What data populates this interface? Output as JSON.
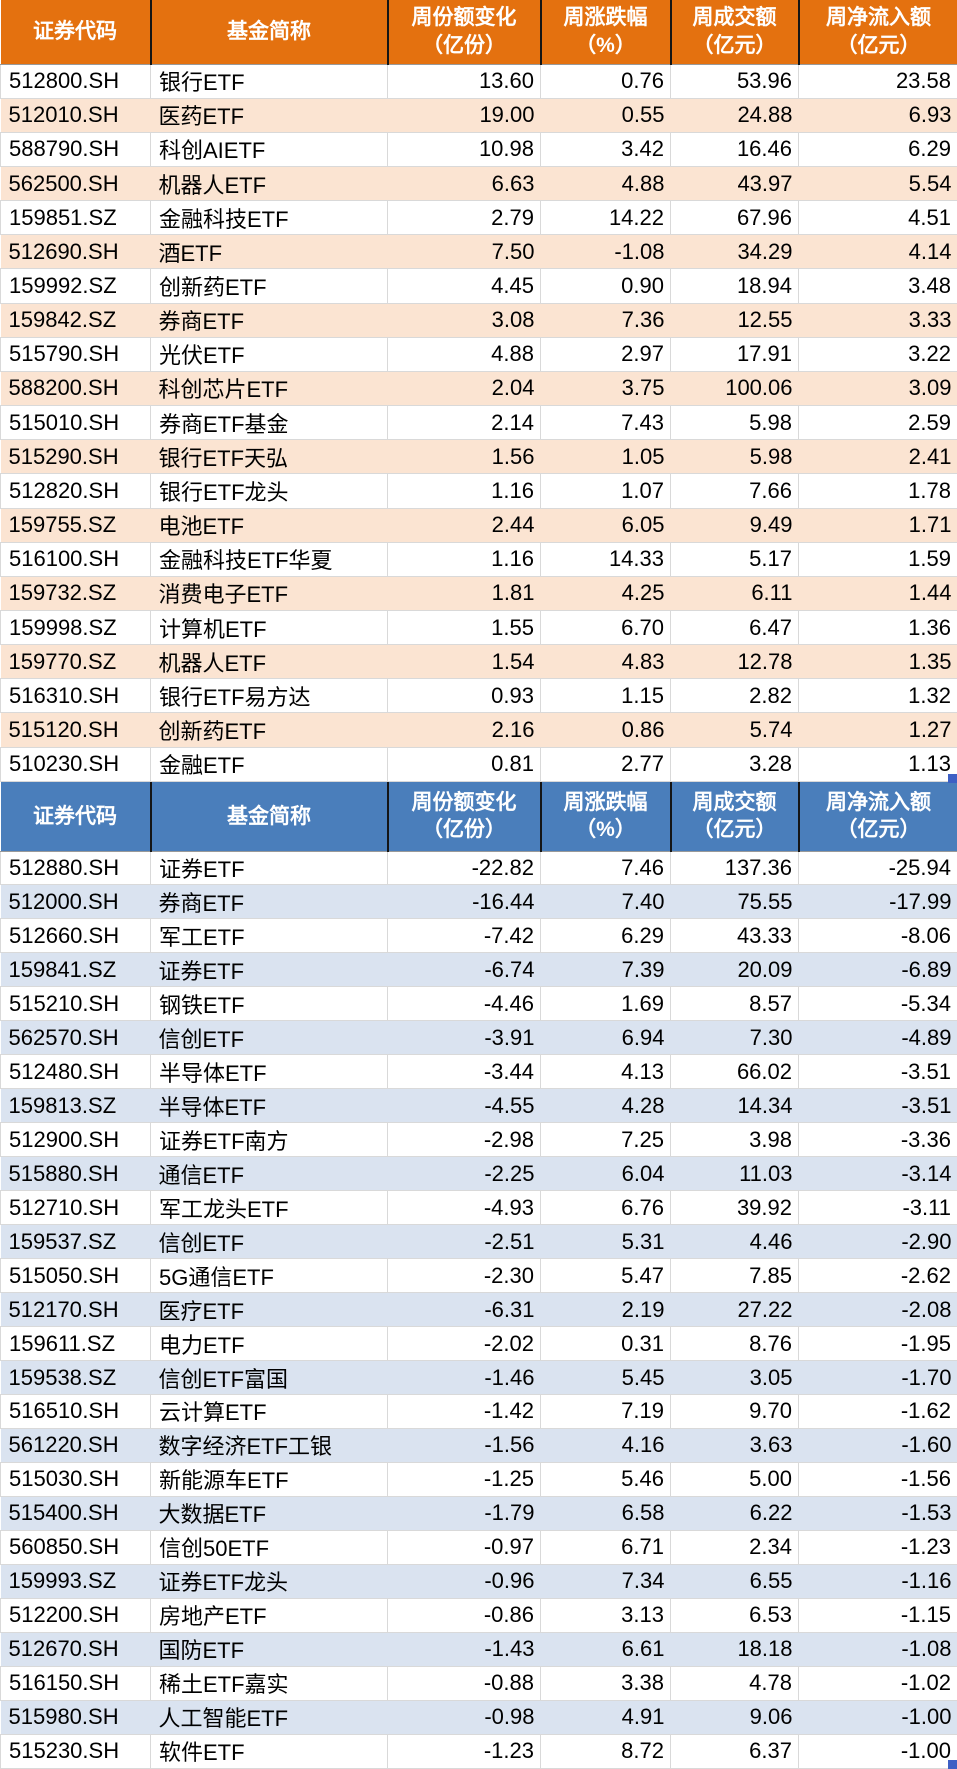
{
  "columns": {
    "code": "证券代码",
    "name": "基金简称",
    "share_change": "周份额变化\n（亿份）",
    "pct_change": "周涨跌幅\n（%）",
    "turnover": "周成交额\n（亿元）",
    "net_inflow": "周净流入额\n（亿元）"
  },
  "colors": {
    "orange_header": "#E4710F",
    "orange_band": "#FBE4D2",
    "blue_header": "#4A7EBB",
    "blue_band": "#DAE3F0",
    "gridline": "#D9D9D9",
    "selection_handle": "#3D5FC4"
  },
  "tables": [
    {
      "theme": "orange",
      "rows": [
        [
          "512800.SH",
          "银行ETF",
          "13.60",
          "0.76",
          "53.96",
          "23.58"
        ],
        [
          "512010.SH",
          "医药ETF",
          "19.00",
          "0.55",
          "24.88",
          "6.93"
        ],
        [
          "588790.SH",
          "科创AIETF",
          "10.98",
          "3.42",
          "16.46",
          "6.29"
        ],
        [
          "562500.SH",
          "机器人ETF",
          "6.63",
          "4.88",
          "43.97",
          "5.54"
        ],
        [
          "159851.SZ",
          "金融科技ETF",
          "2.79",
          "14.22",
          "67.96",
          "4.51"
        ],
        [
          "512690.SH",
          "酒ETF",
          "7.50",
          "-1.08",
          "34.29",
          "4.14"
        ],
        [
          "159992.SZ",
          "创新药ETF",
          "4.45",
          "0.90",
          "18.94",
          "3.48"
        ],
        [
          "159842.SZ",
          "券商ETF",
          "3.08",
          "7.36",
          "12.55",
          "3.33"
        ],
        [
          "515790.SH",
          "光伏ETF",
          "4.88",
          "2.97",
          "17.91",
          "3.22"
        ],
        [
          "588200.SH",
          "科创芯片ETF",
          "2.04",
          "3.75",
          "100.06",
          "3.09"
        ],
        [
          "515010.SH",
          "券商ETF基金",
          "2.14",
          "7.43",
          "5.98",
          "2.59"
        ],
        [
          "515290.SH",
          "银行ETF天弘",
          "1.56",
          "1.05",
          "5.98",
          "2.41"
        ],
        [
          "512820.SH",
          "银行ETF龙头",
          "1.16",
          "1.07",
          "7.66",
          "1.78"
        ],
        [
          "159755.SZ",
          "电池ETF",
          "2.44",
          "6.05",
          "9.49",
          "1.71"
        ],
        [
          "516100.SH",
          "金融科技ETF华夏",
          "1.16",
          "14.33",
          "5.17",
          "1.59"
        ],
        [
          "159732.SZ",
          "消费电子ETF",
          "1.81",
          "4.25",
          "6.11",
          "1.44"
        ],
        [
          "159998.SZ",
          "计算机ETF",
          "1.55",
          "6.70",
          "6.47",
          "1.36"
        ],
        [
          "159770.SZ",
          "机器人ETF",
          "1.54",
          "4.83",
          "12.78",
          "1.35"
        ],
        [
          "516310.SH",
          "银行ETF易方达",
          "0.93",
          "1.15",
          "2.82",
          "1.32"
        ],
        [
          "515120.SH",
          "创新药ETF",
          "2.16",
          "0.86",
          "5.74",
          "1.27"
        ],
        [
          "510230.SH",
          "金融ETF",
          "0.81",
          "2.77",
          "3.28",
          "1.13"
        ]
      ]
    },
    {
      "theme": "blue",
      "rows": [
        [
          "512880.SH",
          "证券ETF",
          "-22.82",
          "7.46",
          "137.36",
          "-25.94"
        ],
        [
          "512000.SH",
          "券商ETF",
          "-16.44",
          "7.40",
          "75.55",
          "-17.99"
        ],
        [
          "512660.SH",
          "军工ETF",
          "-7.42",
          "6.29",
          "43.33",
          "-8.06"
        ],
        [
          "159841.SZ",
          "证券ETF",
          "-6.74",
          "7.39",
          "20.09",
          "-6.89"
        ],
        [
          "515210.SH",
          "钢铁ETF",
          "-4.46",
          "1.69",
          "8.57",
          "-5.34"
        ],
        [
          "562570.SH",
          "信创ETF",
          "-3.91",
          "6.94",
          "7.30",
          "-4.89"
        ],
        [
          "512480.SH",
          "半导体ETF",
          "-3.44",
          "4.13",
          "66.02",
          "-3.51"
        ],
        [
          "159813.SZ",
          "半导体ETF",
          "-4.55",
          "4.28",
          "14.34",
          "-3.51"
        ],
        [
          "512900.SH",
          "证券ETF南方",
          "-2.98",
          "7.25",
          "3.98",
          "-3.36"
        ],
        [
          "515880.SH",
          "通信ETF",
          "-2.25",
          "6.04",
          "11.03",
          "-3.14"
        ],
        [
          "512710.SH",
          "军工龙头ETF",
          "-4.93",
          "6.76",
          "39.92",
          "-3.11"
        ],
        [
          "159537.SZ",
          "信创ETF",
          "-2.51",
          "5.31",
          "4.46",
          "-2.90"
        ],
        [
          "515050.SH",
          "5G通信ETF",
          "-2.30",
          "5.47",
          "7.85",
          "-2.62"
        ],
        [
          "512170.SH",
          "医疗ETF",
          "-6.31",
          "2.19",
          "27.22",
          "-2.08"
        ],
        [
          "159611.SZ",
          "电力ETF",
          "-2.02",
          "0.31",
          "8.76",
          "-1.95"
        ],
        [
          "159538.SZ",
          "信创ETF富国",
          "-1.46",
          "5.45",
          "3.05",
          "-1.70"
        ],
        [
          "516510.SH",
          "云计算ETF",
          "-1.42",
          "7.19",
          "9.70",
          "-1.62"
        ],
        [
          "561220.SH",
          "数字经济ETF工银",
          "-1.56",
          "4.16",
          "3.63",
          "-1.60"
        ],
        [
          "515030.SH",
          "新能源车ETF",
          "-1.25",
          "5.46",
          "5.00",
          "-1.56"
        ],
        [
          "515400.SH",
          "大数据ETF",
          "-1.79",
          "6.58",
          "6.22",
          "-1.53"
        ],
        [
          "560850.SH",
          "信创50ETF",
          "-0.97",
          "6.71",
          "2.34",
          "-1.23"
        ],
        [
          "159993.SZ",
          "证券ETF龙头",
          "-0.96",
          "7.34",
          "6.55",
          "-1.16"
        ],
        [
          "512200.SH",
          "房地产ETF",
          "-0.86",
          "3.13",
          "6.53",
          "-1.15"
        ],
        [
          "512670.SH",
          "国防ETF",
          "-1.43",
          "6.61",
          "18.18",
          "-1.08"
        ],
        [
          "516150.SH",
          "稀土ETF嘉实",
          "-0.88",
          "3.38",
          "4.78",
          "-1.02"
        ],
        [
          "515980.SH",
          "人工智能ETF",
          "-0.98",
          "4.91",
          "9.06",
          "-1.00"
        ],
        [
          "515230.SH",
          "软件ETF",
          "-1.23",
          "8.72",
          "6.37",
          "-1.00"
        ]
      ]
    }
  ]
}
